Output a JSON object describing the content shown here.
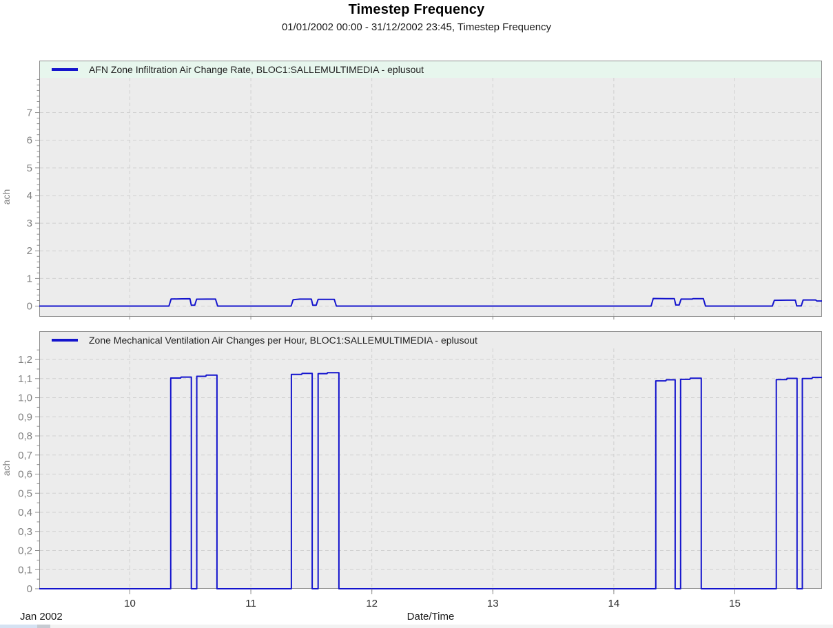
{
  "header": {
    "title": "Timestep Frequency",
    "subtitle": "01/01/2002 00:00 - 31/12/2002 23:45, Timestep Frequency"
  },
  "x_axis": {
    "tick_values": [
      10,
      11,
      12,
      13,
      14,
      15
    ],
    "tick_labels": [
      "10",
      "11",
      "12",
      "13",
      "14",
      "15"
    ],
    "month_label": "Jan 2002",
    "title": "Date/Time"
  },
  "colors": {
    "line": "#1414cd",
    "plot_bg": "#ececec",
    "legend_bg_mint": "#e7f6ed",
    "grid": "#d0d0d0",
    "border": "#8c8c8c",
    "tick": "#8c8c8c",
    "y_label_text": "#808080",
    "x_label_text": "#2b2b2b"
  },
  "chart_data": [
    {
      "type": "line",
      "legend": "AFN Zone Infiltration Air Change Rate, BLOC1:SALLEMULTIMEDIA - eplusout",
      "ylabel": "ach",
      "legend_has_mint_bg": true,
      "xlim": [
        9.2514,
        15.7204
      ],
      "ylim": [
        -0.386,
        8.882
      ],
      "ytick_values": [
        0,
        1,
        2,
        3,
        4,
        5,
        6,
        7
      ],
      "ytick_labels": [
        "0",
        "1",
        "2",
        "3",
        "4",
        "5",
        "6",
        "7"
      ],
      "y_minor_step": 0.2,
      "y_minor_max": 8.2,
      "grid_on": true,
      "legend_position": "top",
      "points": [
        [
          9.2514,
          0
        ],
        [
          10.323,
          0
        ],
        [
          10.341,
          0.255
        ],
        [
          10.43,
          0.262
        ],
        [
          10.497,
          0.265
        ],
        [
          10.508,
          0.03
        ],
        [
          10.536,
          0.03
        ],
        [
          10.552,
          0.25
        ],
        [
          10.64,
          0.252
        ],
        [
          10.708,
          0.252
        ],
        [
          10.726,
          0
        ],
        [
          11.333,
          0
        ],
        [
          11.35,
          0.232
        ],
        [
          11.405,
          0.252
        ],
        [
          11.5,
          0.252
        ],
        [
          11.512,
          0.03
        ],
        [
          11.54,
          0.03
        ],
        [
          11.556,
          0.242
        ],
        [
          11.69,
          0.242
        ],
        [
          11.707,
          0
        ],
        [
          14.308,
          0
        ],
        [
          14.326,
          0.275
        ],
        [
          14.43,
          0.266
        ],
        [
          14.5,
          0.266
        ],
        [
          14.512,
          0.04
        ],
        [
          14.54,
          0.04
        ],
        [
          14.556,
          0.252
        ],
        [
          14.648,
          0.252
        ],
        [
          14.655,
          0.27
        ],
        [
          14.74,
          0.27
        ],
        [
          14.758,
          0
        ],
        [
          15.31,
          0
        ],
        [
          15.327,
          0.21
        ],
        [
          15.43,
          0.215
        ],
        [
          15.5,
          0.215
        ],
        [
          15.512,
          0.005
        ],
        [
          15.549,
          0.005
        ],
        [
          15.565,
          0.222
        ],
        [
          15.668,
          0.222
        ],
        [
          15.678,
          0.185
        ],
        [
          15.7204,
          0.185
        ]
      ]
    },
    {
      "type": "line",
      "legend": "Zone Mechanical Ventilation Air Changes per Hour, BLOC1:SALLEMULTIMEDIA - eplusout",
      "ylabel": "ach",
      "legend_has_mint_bg": false,
      "xlim": [
        9.2514,
        15.7204
      ],
      "ylim": [
        0,
        1.348
      ],
      "ytick_values": [
        0,
        0.1,
        0.2,
        0.3,
        0.4,
        0.5,
        0.6,
        0.7,
        0.8,
        0.9,
        1.0,
        1.1,
        1.2
      ],
      "ytick_labels": [
        "0",
        "0,1",
        "0,2",
        "0,3",
        "0,4",
        "0,5",
        "0,6",
        "0,7",
        "0,8",
        "0,9",
        "1,0",
        "1,1",
        "1,2"
      ],
      "y_minor_step": 0.05,
      "y_minor_max": 1.25,
      "grid_on": true,
      "legend_position": "top",
      "points": [
        [
          9.2514,
          0
        ],
        [
          10.338,
          0
        ],
        [
          10.338,
          1.103
        ],
        [
          10.42,
          1.103
        ],
        [
          10.424,
          1.108
        ],
        [
          10.508,
          1.108
        ],
        [
          10.508,
          0
        ],
        [
          10.553,
          0
        ],
        [
          10.553,
          1.112
        ],
        [
          10.628,
          1.112
        ],
        [
          10.632,
          1.118
        ],
        [
          10.72,
          1.118
        ],
        [
          10.72,
          0
        ],
        [
          11.335,
          0
        ],
        [
          11.335,
          1.122
        ],
        [
          11.42,
          1.122
        ],
        [
          11.424,
          1.127
        ],
        [
          11.507,
          1.127
        ],
        [
          11.507,
          0
        ],
        [
          11.556,
          0
        ],
        [
          11.556,
          1.126
        ],
        [
          11.63,
          1.126
        ],
        [
          11.634,
          1.131
        ],
        [
          11.728,
          1.131
        ],
        [
          11.728,
          0
        ],
        [
          14.347,
          0
        ],
        [
          14.347,
          1.088
        ],
        [
          14.43,
          1.088
        ],
        [
          14.434,
          1.094
        ],
        [
          14.507,
          1.094
        ],
        [
          14.507,
          0
        ],
        [
          14.552,
          0
        ],
        [
          14.552,
          1.096
        ],
        [
          14.628,
          1.096
        ],
        [
          14.632,
          1.102
        ],
        [
          14.723,
          1.102
        ],
        [
          14.723,
          0
        ],
        [
          15.343,
          0
        ],
        [
          15.343,
          1.095
        ],
        [
          15.428,
          1.095
        ],
        [
          15.432,
          1.101
        ],
        [
          15.514,
          1.101
        ],
        [
          15.514,
          0
        ],
        [
          15.558,
          0
        ],
        [
          15.558,
          1.1
        ],
        [
          15.638,
          1.1
        ],
        [
          15.642,
          1.106
        ],
        [
          15.7204,
          1.106
        ]
      ]
    }
  ]
}
